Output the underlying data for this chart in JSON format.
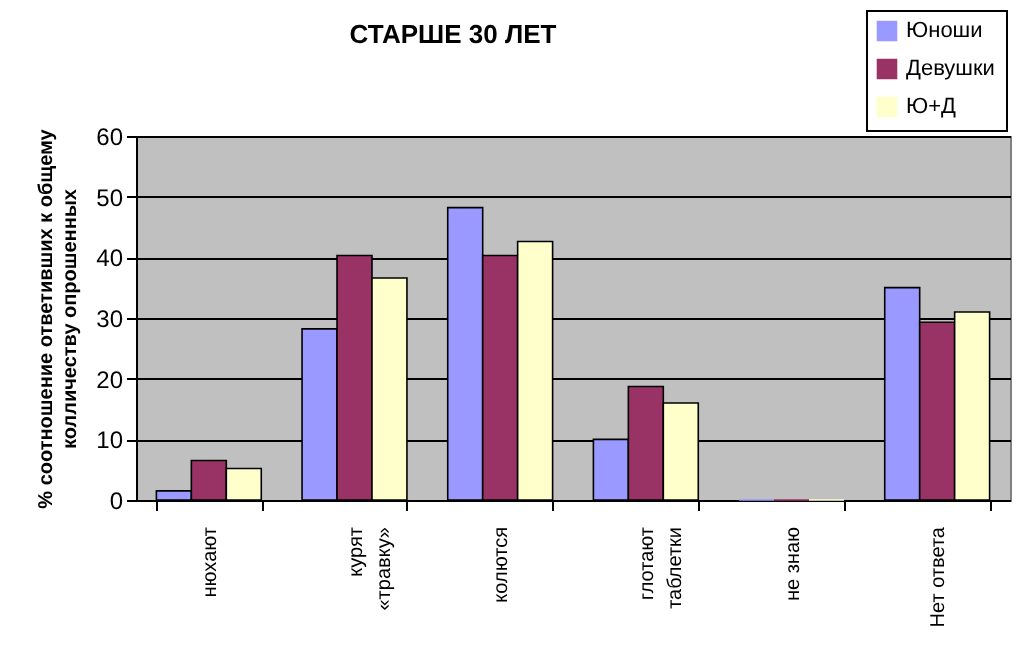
{
  "chart_data": {
    "type": "bar",
    "title": "СТАРШЕ 30 ЛЕТ",
    "ylabel": "% соотношение ответивших к общему колличеству опрошенных",
    "categories": [
      "нюхают",
      "курят «травку»",
      "колются",
      "глотают таблетки",
      "не знаю",
      "Нет ответа"
    ],
    "series": [
      {
        "name": "Юноши",
        "color": "#9999ff",
        "values": [
          1.5,
          28.2,
          48.2,
          10,
          0,
          35
        ]
      },
      {
        "name": "Девушки",
        "color": "#993366",
        "values": [
          6.5,
          40.3,
          40.3,
          18.7,
          0,
          29.3
        ]
      },
      {
        "name": "Ю+Д",
        "color": "#ffffcc",
        "values": [
          5.2,
          36.6,
          42.6,
          16,
          0,
          31
        ]
      }
    ],
    "ylim": [
      0,
      60
    ],
    "yticks": [
      0,
      10,
      20,
      30,
      40,
      50,
      60
    ],
    "grid": "y",
    "legend": "top right"
  }
}
